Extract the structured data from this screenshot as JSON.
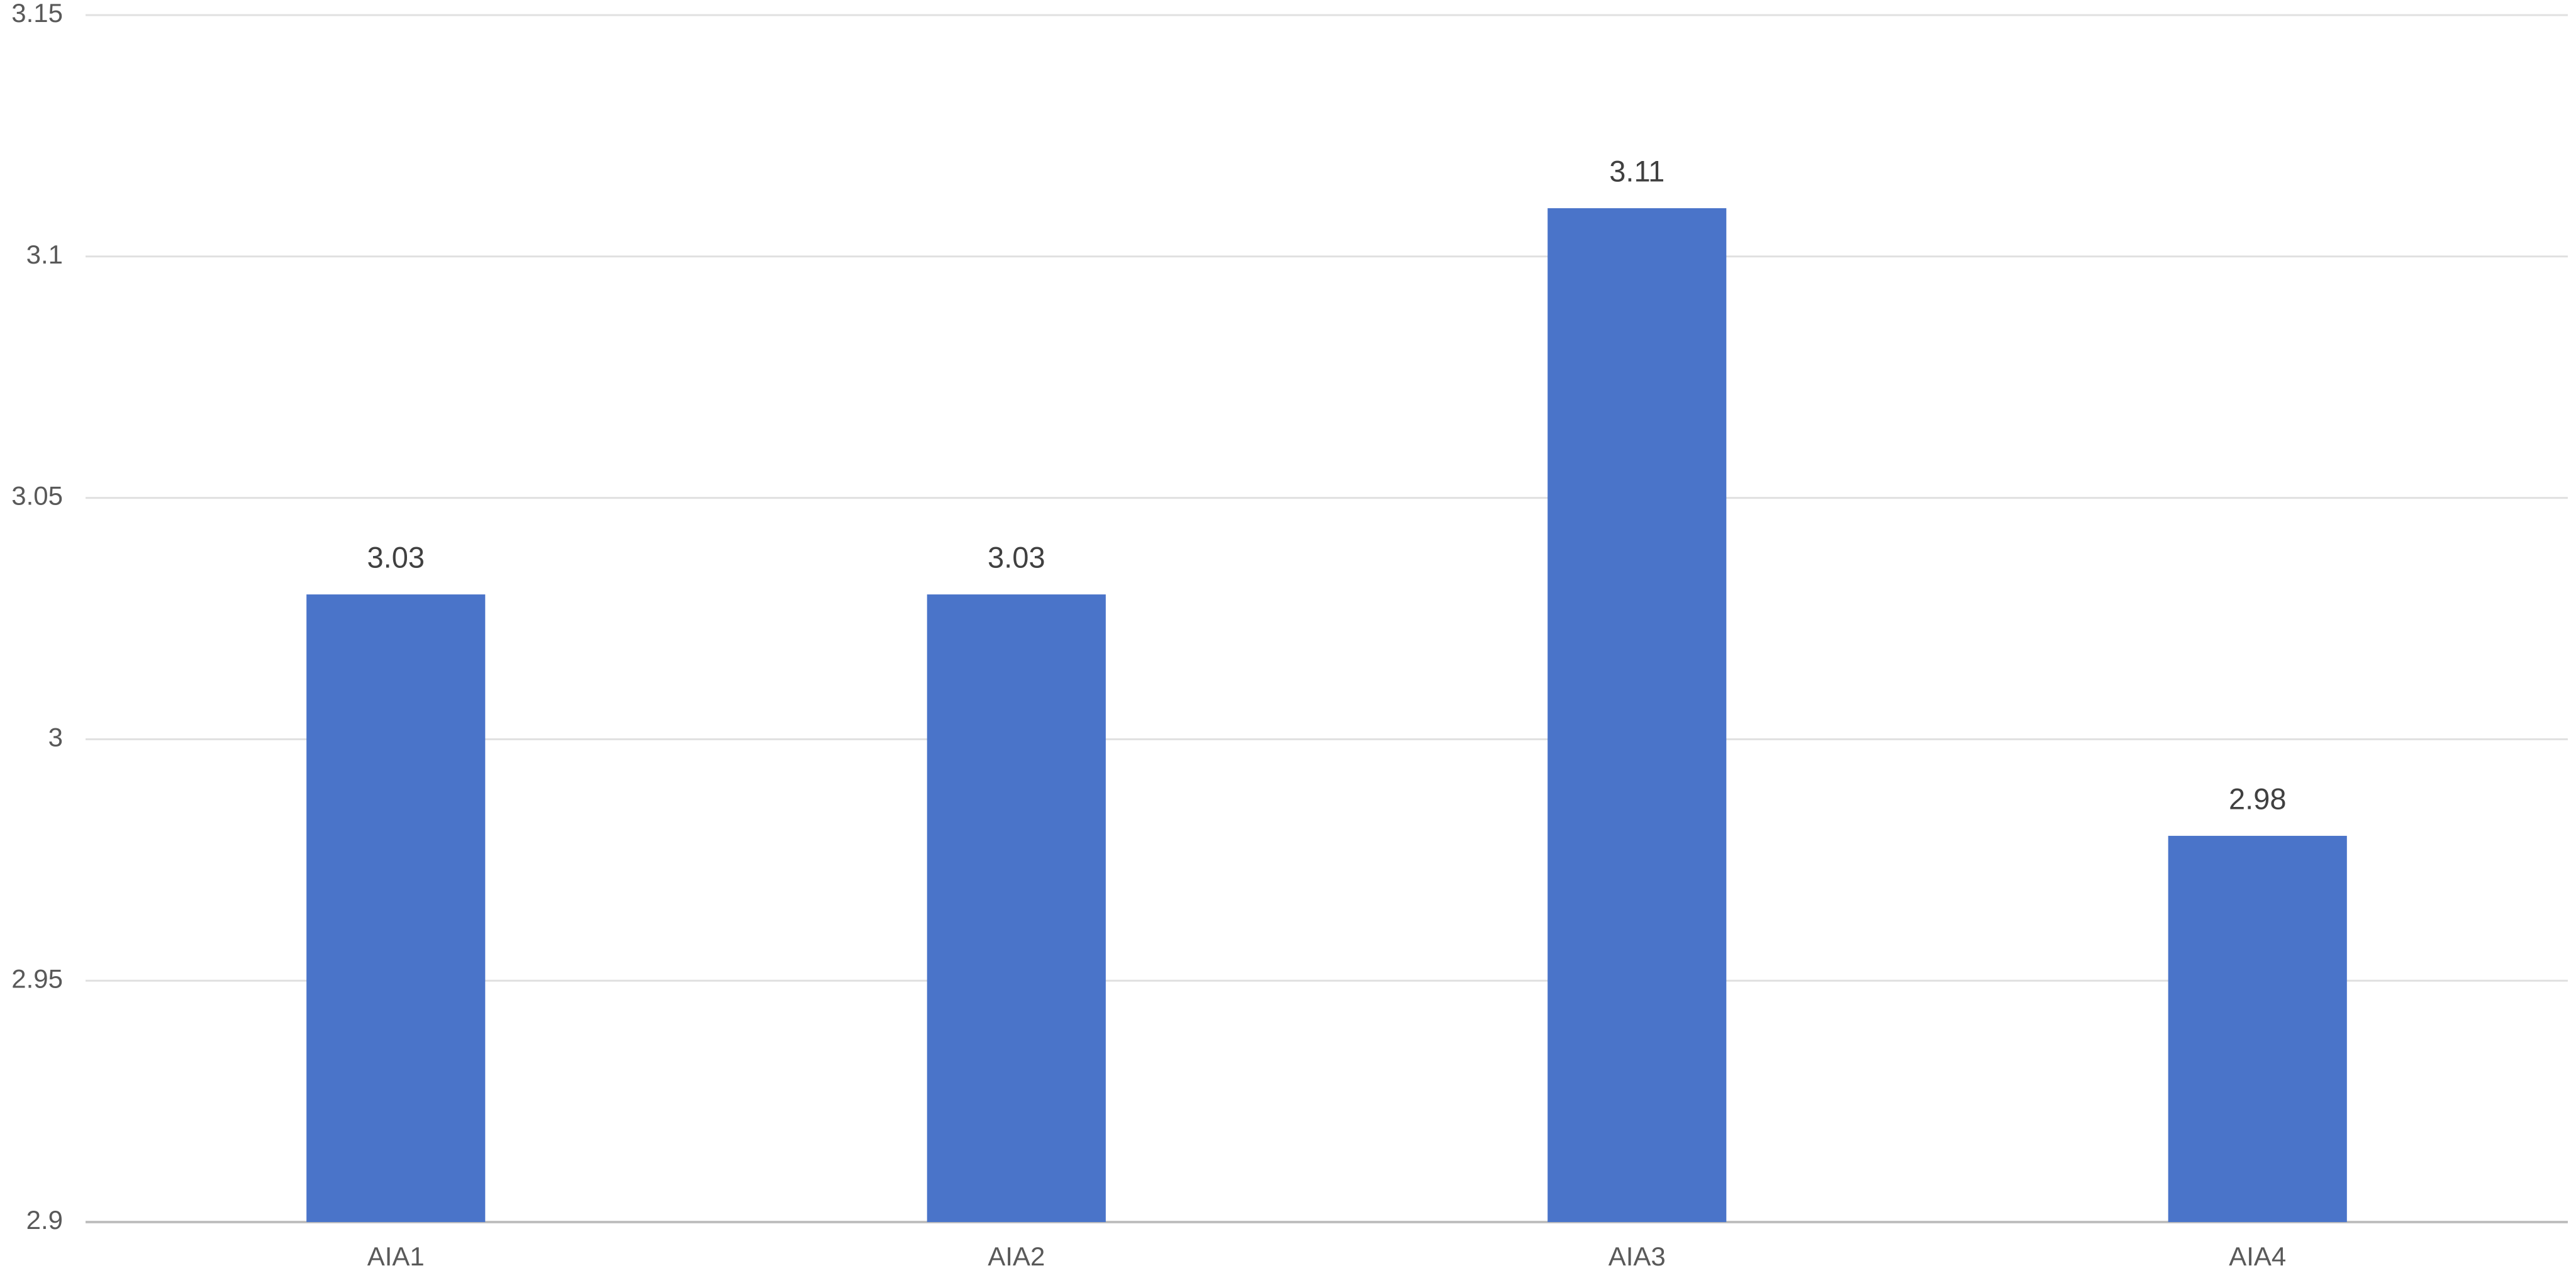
{
  "chart_data": {
    "type": "bar",
    "categories": [
      "AIA1",
      "AIA2",
      "AIA3",
      "AIA4"
    ],
    "values": [
      3.03,
      3.03,
      3.11,
      2.98
    ],
    "color": "#4a74c9",
    "ylim": [
      2.9,
      3.15
    ],
    "yticks": [
      2.9,
      2.95,
      3,
      3.05,
      3.1,
      3.15
    ],
    "grid": true
  }
}
